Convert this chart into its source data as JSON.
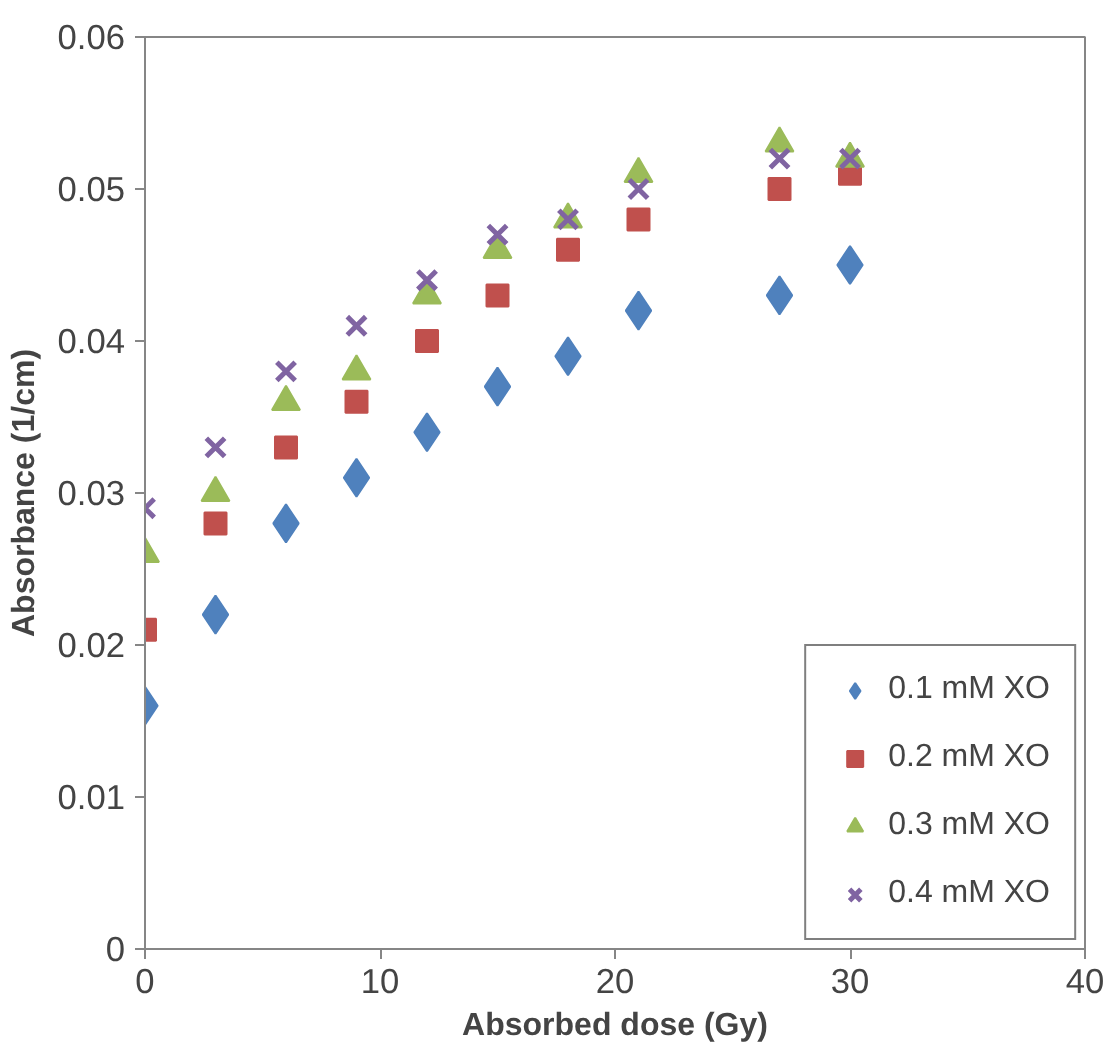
{
  "chart_data": {
    "type": "scatter",
    "xlabel": "Absorbed dose (Gy)",
    "ylabel": "Absorbance (1/cm)",
    "x": [
      0,
      3,
      6,
      9,
      12,
      15,
      18,
      21,
      27,
      30
    ],
    "series": [
      {
        "name": "0.1 mM XO",
        "color": "#4f81bd",
        "marker": "diamond",
        "values": [
          0.016,
          0.022,
          0.028,
          0.031,
          0.034,
          0.037,
          0.039,
          0.042,
          0.043,
          0.045
        ]
      },
      {
        "name": "0.2 mM XO",
        "color": "#c0504d",
        "marker": "square",
        "values": [
          0.021,
          0.028,
          0.033,
          0.036,
          0.04,
          0.043,
          0.046,
          0.048,
          0.05,
          0.051
        ]
      },
      {
        "name": "0.3 mM XO",
        "color": "#9bbb59",
        "marker": "triangle",
        "values": [
          0.026,
          0.03,
          0.036,
          0.038,
          0.043,
          0.046,
          0.048,
          0.051,
          0.053,
          0.052
        ]
      },
      {
        "name": "0.4 mM XO",
        "color": "#8064a2",
        "marker": "cross",
        "values": [
          0.029,
          0.033,
          0.038,
          0.041,
          0.044,
          0.047,
          0.048,
          0.05,
          0.052,
          0.052
        ]
      }
    ],
    "xlim": [
      0,
      40
    ],
    "xticks": [
      0,
      10,
      20,
      30,
      40
    ],
    "ylim": [
      0,
      0.06
    ],
    "yticks": [
      0,
      0.01,
      0.02,
      0.03,
      0.04,
      0.05,
      0.06
    ],
    "grid": false,
    "legend": "bottom right"
  }
}
